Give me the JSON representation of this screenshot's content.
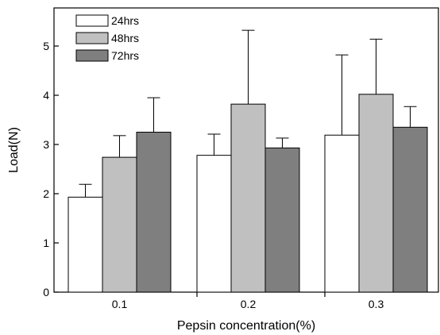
{
  "chart_data": {
    "type": "bar",
    "xlabel": "Pepsin concentration(%)",
    "ylabel": "Load(N)",
    "categories": [
      "0.1",
      "0.2",
      "0.3"
    ],
    "series": [
      {
        "name": "24hrs",
        "color": "#ffffff",
        "values": [
          1.93,
          2.78,
          3.19
        ],
        "errors": [
          0.26,
          0.43,
          1.63
        ]
      },
      {
        "name": "48hrs",
        "color": "#c0c0c0",
        "values": [
          2.74,
          3.82,
          4.02
        ],
        "errors": [
          0.44,
          1.5,
          1.12
        ]
      },
      {
        "name": "72hrs",
        "color": "#7f7f7f",
        "values": [
          3.25,
          2.93,
          3.35
        ],
        "errors": [
          0.7,
          0.2,
          0.42
        ]
      }
    ],
    "ylim": [
      0,
      5.7
    ],
    "yticks": [
      "0",
      "1",
      "2",
      "3",
      "4",
      "5"
    ],
    "grid": false,
    "legend_position": "top-left"
  }
}
